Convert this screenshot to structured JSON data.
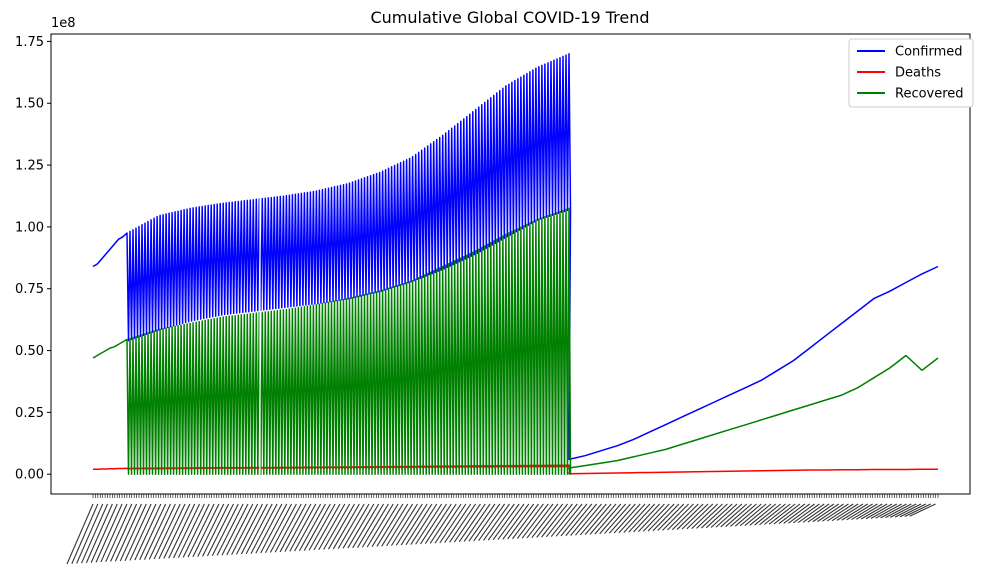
{
  "chart_data": {
    "type": "line",
    "title": "Cumulative Global COVID-19 Trend",
    "xlabel": "",
    "ylabel": "",
    "offset_label": "1e8",
    "ylim": [
      -0.08,
      1.78
    ],
    "y_scale_note": "values in units of 1e8",
    "yticks": [
      "0.00",
      "0.25",
      "0.50",
      "0.75",
      "1.00",
      "1.25",
      "1.50",
      "1.75"
    ],
    "x_tick_count": 350,
    "legend_position": "upper right",
    "series": [
      {
        "name": "Confirmed",
        "color": "#0000ff",
        "lead_in": [
          0.84,
          0.85,
          0.87,
          0.89,
          0.91,
          0.93,
          0.95,
          0.96,
          0.975
        ],
        "osc_high": [
          0.975,
          1.045,
          1.075,
          1.095,
          1.11,
          1.125,
          1.145,
          1.175,
          1.22,
          1.28,
          1.37,
          1.47,
          1.57,
          1.645,
          1.7
        ],
        "osc_low": [
          0.54,
          0.585,
          0.62,
          0.645,
          0.66,
          0.675,
          0.69,
          0.71,
          0.74,
          0.78,
          0.83,
          0.89,
          0.96,
          1.03,
          1.07
        ],
        "tail": [
          0.06,
          0.075,
          0.095,
          0.115,
          0.14,
          0.17,
          0.2,
          0.23,
          0.26,
          0.29,
          0.32,
          0.35,
          0.38,
          0.42,
          0.46,
          0.51,
          0.56,
          0.61,
          0.66,
          0.71,
          0.74,
          0.775,
          0.81,
          0.84
        ]
      },
      {
        "name": "Deaths",
        "color": "#ff0000",
        "lead_in": [
          0.02,
          0.02,
          0.021,
          0.021,
          0.022,
          0.022,
          0.023,
          0.023,
          0.024
        ],
        "osc_high": [
          0.024,
          0.025,
          0.026,
          0.027,
          0.027,
          0.028,
          0.029,
          0.03,
          0.031,
          0.032,
          0.033,
          0.034,
          0.035,
          0.036,
          0.037
        ],
        "osc_low": [
          0.02,
          0.02,
          0.021,
          0.021,
          0.022,
          0.022,
          0.023,
          0.023,
          0.024,
          0.024,
          0.025,
          0.025,
          0.026,
          0.026,
          0.027
        ],
        "tail": [
          0.002,
          0.003,
          0.004,
          0.005,
          0.006,
          0.007,
          0.008,
          0.009,
          0.01,
          0.011,
          0.012,
          0.013,
          0.014,
          0.015,
          0.016,
          0.017,
          0.017,
          0.018,
          0.018,
          0.019,
          0.019,
          0.019,
          0.02,
          0.02
        ]
      },
      {
        "name": "Recovered",
        "color": "#008000",
        "lead_in": [
          0.47,
          0.48,
          0.49,
          0.5,
          0.51,
          0.515,
          0.525,
          0.535,
          0.545
        ],
        "osc_high": [
          0.545,
          0.585,
          0.61,
          0.635,
          0.65,
          0.665,
          0.685,
          0.71,
          0.74,
          0.78,
          0.84,
          0.9,
          0.97,
          1.03,
          1.075
        ],
        "osc_low": [
          0.0,
          0.0,
          0.0,
          0.0,
          0.0,
          0.0,
          0.0,
          0.0,
          0.0,
          0.0,
          0.0,
          0.0,
          0.0,
          0.0,
          0.0
        ],
        "tail": [
          0.025,
          0.035,
          0.045,
          0.055,
          0.07,
          0.085,
          0.1,
          0.12,
          0.14,
          0.16,
          0.18,
          0.2,
          0.22,
          0.24,
          0.26,
          0.28,
          0.3,
          0.32,
          0.35,
          0.39,
          0.43,
          0.48,
          0.42,
          0.47
        ]
      }
    ]
  }
}
